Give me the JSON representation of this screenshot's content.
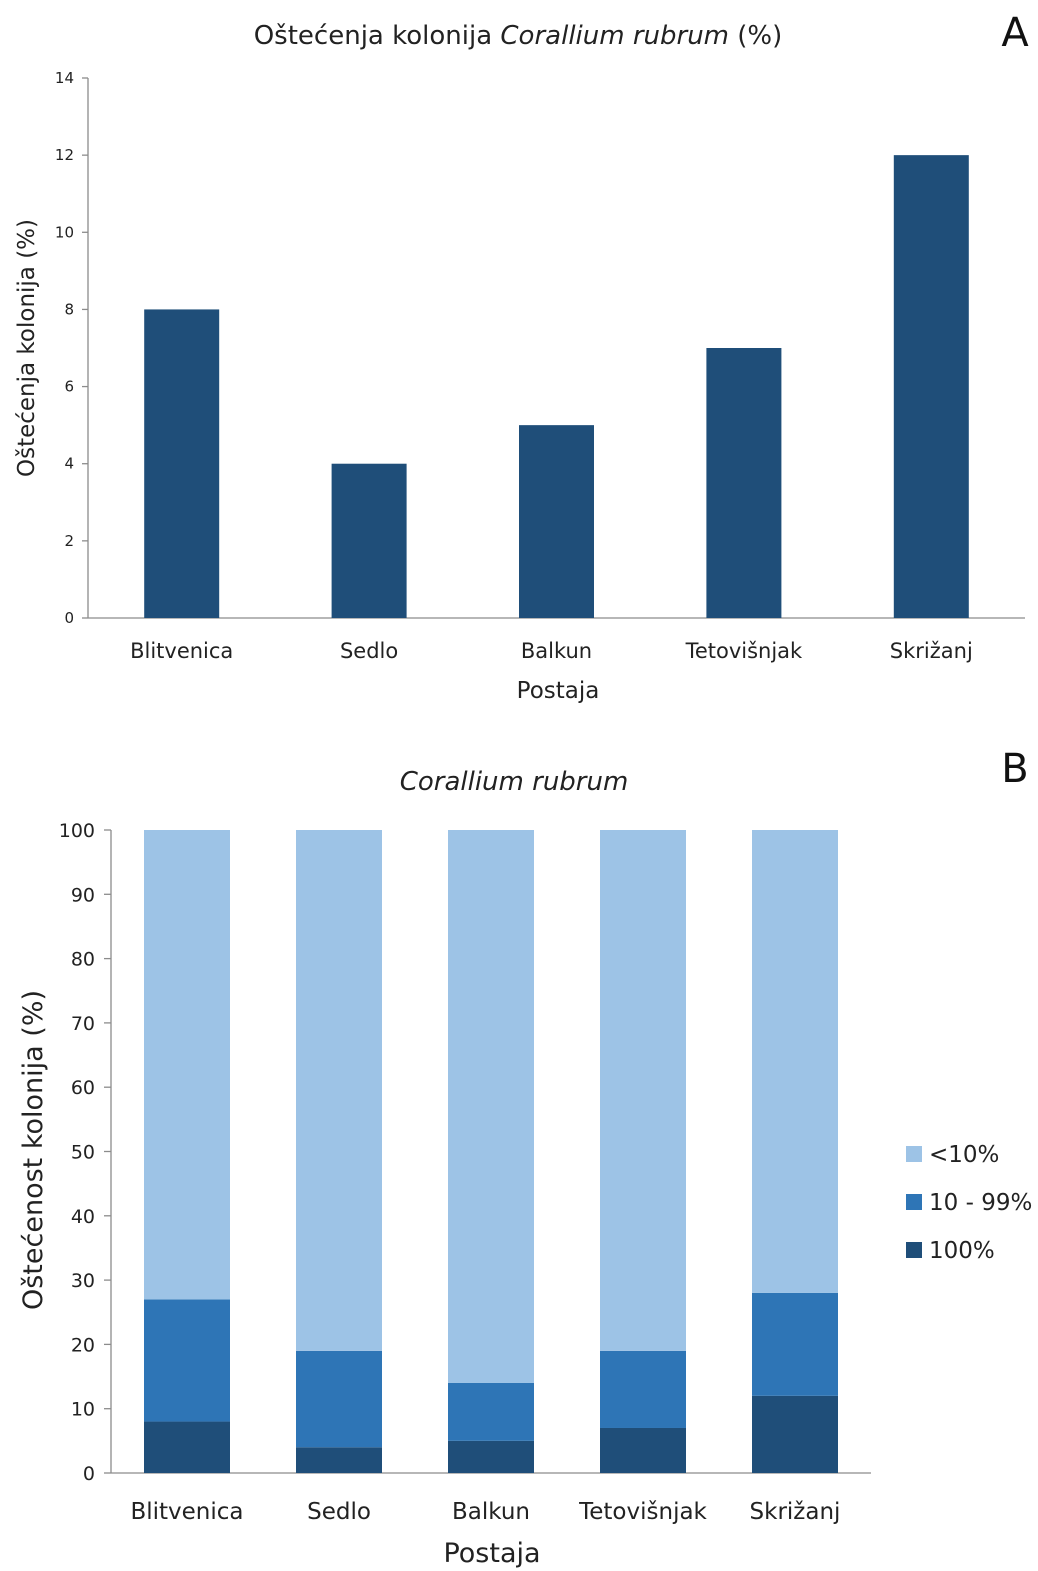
{
  "chart_data": [
    {
      "type": "bar",
      "panel_label": "A",
      "title_prefix": "Oštećenja kolonija ",
      "title_italic": "Corallium rubrum",
      "title_suffix": " (%)",
      "xlabel": "Postaja",
      "ylabel": "Oštećenja kolonija (%)",
      "categories": [
        "Blitvenica",
        "Sedlo",
        "Balkun",
        "Tetovišnjak",
        "Skrižanj"
      ],
      "values": [
        8,
        4,
        5,
        7,
        12
      ],
      "ylim": [
        0,
        14
      ],
      "yticks": [
        0,
        2,
        4,
        6,
        8,
        10,
        12,
        14
      ],
      "color": "#1f4e79",
      "grid": false
    },
    {
      "type": "bar",
      "stacked": true,
      "panel_label": "B",
      "title_italic": "Corallium rubrum",
      "xlabel": "Postaja",
      "ylabel": "Oštećenost kolonija (%)",
      "categories": [
        "Blitvenica",
        "Sedlo",
        "Balkun",
        "Tetovišnjak",
        "Skrižanj"
      ],
      "series": [
        {
          "name": "100%",
          "values": [
            8,
            4,
            5,
            7,
            12
          ],
          "color": "#1f4e79"
        },
        {
          "name": "10 - 99%",
          "values": [
            19,
            15,
            9,
            12,
            16
          ],
          "color": "#2e75b6"
        },
        {
          "name": "<10%",
          "values": [
            73,
            81,
            86,
            81,
            72
          ],
          "color": "#9dc3e6"
        }
      ],
      "ylim": [
        0,
        100
      ],
      "yticks": [
        0,
        10,
        20,
        30,
        40,
        50,
        60,
        70,
        80,
        90,
        100
      ],
      "legend_position": "right",
      "legend_order": [
        "<10%",
        "10 - 99%",
        "100%"
      ],
      "grid": false
    }
  ]
}
